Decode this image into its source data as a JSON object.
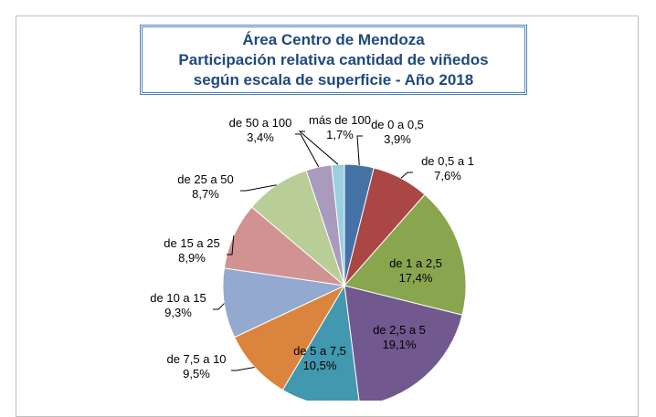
{
  "chart_data": {
    "type": "pie",
    "title": [
      "Área Centro de Mendoza",
      "Participación relativa cantidad de viñedos",
      "según escala de superficie - Año 2018"
    ],
    "categories": [
      "de 0 a 0,5",
      "de 0,5 a 1",
      "de 1 a 2,5",
      "de 2,5 a 5",
      "de 5 a 7,5",
      "de 7,5  a 10",
      "de 10 a 15",
      "de 15 a 25",
      "de 25 a 50",
      "de 50 a 100",
      "más de 100"
    ],
    "values": [
      3.9,
      7.6,
      17.4,
      19.1,
      10.5,
      9.5,
      9.3,
      8.9,
      8.7,
      3.4,
      1.7
    ],
    "value_labels": [
      "3,9%",
      "7,6%",
      "17,4%",
      "19,1%",
      "10,5%",
      "9,5%",
      "9,3%",
      "8,9%",
      "8,7%",
      "3,4%",
      "1,7%"
    ],
    "colors": [
      "#4572a7",
      "#aa4643",
      "#89a54e",
      "#71588f",
      "#4198af",
      "#db843d",
      "#93a9cf",
      "#d19392",
      "#b9cd96",
      "#a99bbd",
      "#9ad0e0"
    ]
  }
}
